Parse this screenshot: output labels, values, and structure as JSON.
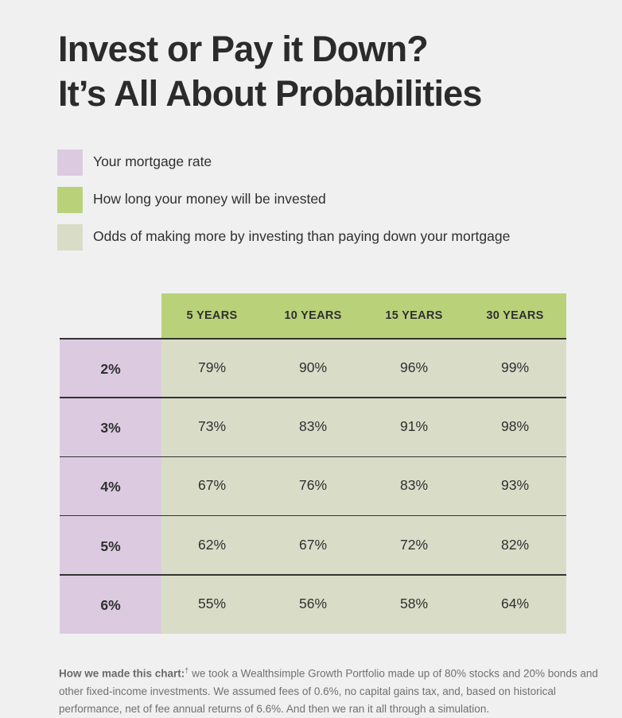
{
  "title": {
    "line1": "Invest or Pay it Down?",
    "line2": "It’s All About Probabilities"
  },
  "legend": [
    {
      "label": "Your mortgage rate",
      "color": "#dccbe0"
    },
    {
      "label": "How long your money will be invested",
      "color": "#b9d27a"
    },
    {
      "label": "Odds of making more by investing than paying down your mortgage",
      "color": "#d9ddc8"
    }
  ],
  "chart_data": {
    "type": "table",
    "columns": [
      "5 YEARS",
      "10 YEARS",
      "15 YEARS",
      "30 YEARS"
    ],
    "rows": [
      {
        "label": "2%",
        "values": [
          "79%",
          "90%",
          "96%",
          "99%"
        ]
      },
      {
        "label": "3%",
        "values": [
          "73%",
          "83%",
          "91%",
          "98%"
        ]
      },
      {
        "label": "4%",
        "values": [
          "67%",
          "76%",
          "83%",
          "93%"
        ]
      },
      {
        "label": "5%",
        "values": [
          "62%",
          "67%",
          "72%",
          "82%"
        ]
      },
      {
        "label": "6%",
        "values": [
          "55%",
          "56%",
          "58%",
          "64%"
        ]
      }
    ]
  },
  "footnote": {
    "lead": "How we made this chart:",
    "mark": "†",
    "text": " we took a Wealthsimple Growth Portfolio made up of 80% stocks and 20% bonds and other fixed-income investments. We assumed fees of 0.6%, no capital gains tax, and, based on historical performance, net of fee annual returns of 6.6%. And then we ran it all through a simulation."
  }
}
